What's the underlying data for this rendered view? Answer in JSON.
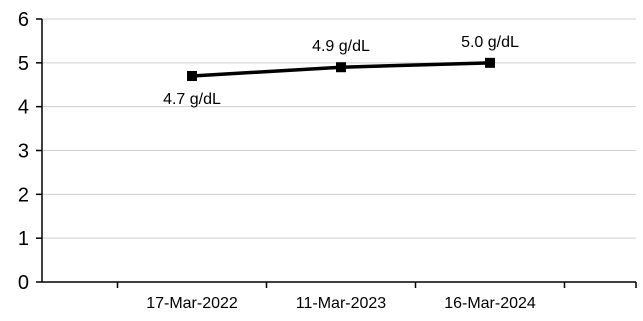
{
  "chart_data": {
    "type": "line",
    "title": "",
    "xlabel": "",
    "ylabel": "",
    "categories": [
      "17-Mar-2022",
      "11-Mar-2023",
      "16-Mar-2024"
    ],
    "series": [
      {
        "values": [
          4.7,
          4.9,
          5.0
        ],
        "data_labels": [
          "4.7 g/dL",
          "4.9 g/dL",
          "5.0 g/dL"
        ],
        "color": "#000000",
        "marker": "square"
      }
    ],
    "ylim": [
      0,
      6
    ],
    "yticks": [
      0,
      1,
      2,
      3,
      4,
      5,
      6
    ],
    "grid": true,
    "legend": "none"
  }
}
